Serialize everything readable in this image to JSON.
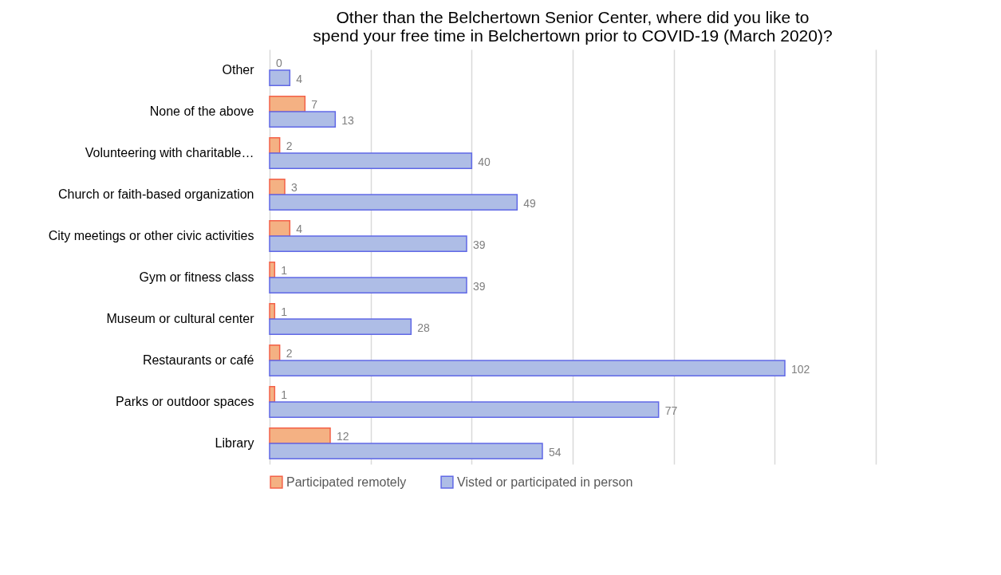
{
  "chart_data": {
    "type": "bar",
    "orientation": "horizontal",
    "title": "Other than the Belchertown Senior Center, where did you like to spend your free time in Belchertown prior to COVID-19 (March 2020)?",
    "categories": [
      "Other",
      "None of the above",
      "Volunteering with charitable…",
      "Church or faith-based organization",
      "City meetings or other civic activities",
      "Gym or fitness class",
      "Museum or cultural center",
      "Restaurants or café",
      "Parks or outdoor spaces",
      "Library"
    ],
    "series": [
      {
        "name": "Participated remotely",
        "color": "#f4b183",
        "values": [
          0,
          7,
          2,
          3,
          4,
          1,
          1,
          2,
          1,
          12
        ]
      },
      {
        "name": "Visted or participated in person",
        "color": "#aebde6",
        "values": [
          4,
          13,
          40,
          49,
          39,
          39,
          28,
          102,
          77,
          54
        ]
      }
    ],
    "xlim": [
      0,
      120
    ],
    "xticks": [
      {
        "value": 0,
        "label": null
      },
      {
        "value": 20,
        "label": null
      },
      {
        "value": 40,
        "label": null
      },
      {
        "value": 60,
        "label": null
      },
      {
        "value": 80,
        "label": null
      },
      {
        "value": 100,
        "label": null
      },
      {
        "value": 120,
        "label": null
      }
    ],
    "tick_labels": "y",
    "grid": "x",
    "legend": "bottom",
    "data_labels": true
  }
}
